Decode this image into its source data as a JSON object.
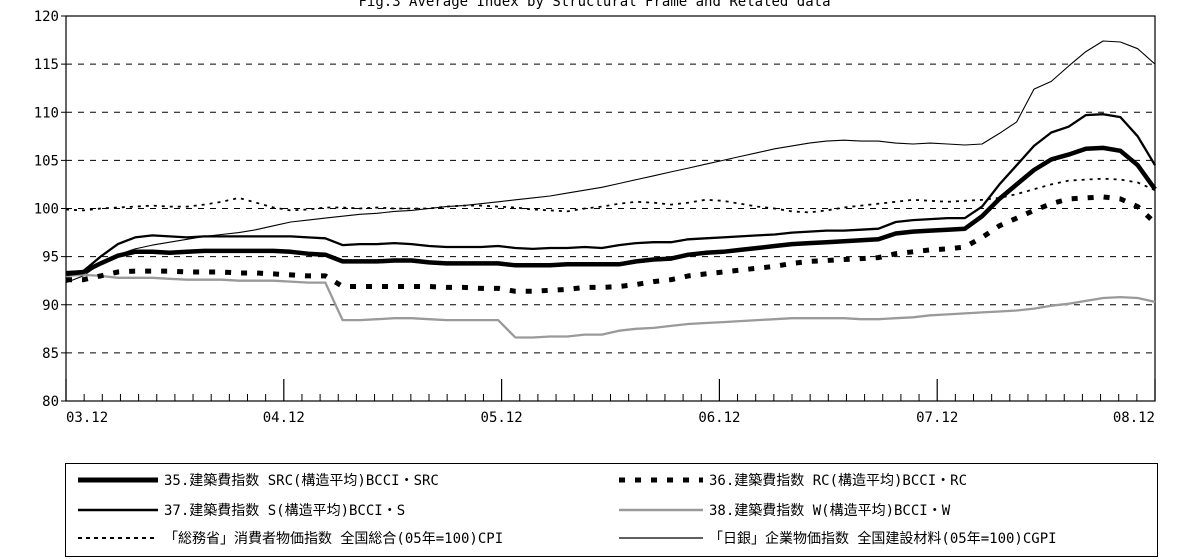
{
  "chart_data": {
    "type": "line",
    "title": "Fig.3 Average Index by Structural Frame and Related data",
    "ylim": [
      80,
      120
    ],
    "yticks": [
      "80",
      "85",
      "90",
      "95",
      "100",
      "105",
      "110",
      "115",
      "120"
    ],
    "xticks": [
      "03.12",
      "04.12",
      "05.12",
      "06.12",
      "07.12",
      "08.12"
    ],
    "grid": "horizontal-dashed",
    "legend": "bottom",
    "series": [
      {
        "name": "35.建築費指数 SRC(構造平均)BCCI・SRC",
        "style": "thick-solid",
        "color": "#000000",
        "values": [
          93.2,
          93.4,
          94.3,
          95.1,
          95.5,
          95.5,
          95.4,
          95.5,
          95.6,
          95.6,
          95.6,
          95.6,
          95.6,
          95.5,
          95.3,
          95.2,
          94.5,
          94.5,
          94.5,
          94.6,
          94.6,
          94.4,
          94.3,
          94.3,
          94.3,
          94.3,
          94.1,
          94.1,
          94.1,
          94.2,
          94.2,
          94.2,
          94.2,
          94.5,
          94.7,
          94.8,
          95.2,
          95.4,
          95.5,
          95.7,
          95.9,
          96.1,
          96.3,
          96.4,
          96.5,
          96.6,
          96.7,
          96.8,
          97.4,
          97.6,
          97.7,
          97.8,
          97.9,
          99.2,
          101.0,
          102.5,
          104.0,
          105.1,
          105.6,
          106.2,
          106.3,
          106.0,
          104.5,
          102.0
        ]
      },
      {
        "name": "36.建築費指数 RC(構造平均)BCCI・RC",
        "style": "thick-dotted",
        "color": "#000000",
        "values": [
          92.6,
          92.6,
          93.0,
          93.4,
          93.5,
          93.5,
          93.5,
          93.4,
          93.4,
          93.4,
          93.3,
          93.3,
          93.2,
          93.1,
          93.0,
          93.0,
          91.9,
          91.9,
          91.9,
          91.9,
          91.9,
          91.9,
          91.8,
          91.8,
          91.7,
          91.7,
          91.4,
          91.4,
          91.5,
          91.6,
          91.8,
          91.8,
          91.9,
          92.1,
          92.4,
          92.6,
          93.0,
          93.2,
          93.4,
          93.6,
          93.8,
          94.0,
          94.3,
          94.5,
          94.6,
          94.7,
          94.8,
          94.9,
          95.3,
          95.5,
          95.7,
          95.8,
          96.0,
          97.0,
          98.2,
          99.0,
          99.8,
          100.5,
          101.0,
          101.1,
          101.2,
          101.0,
          100.2,
          98.5
        ]
      },
      {
        "name": "37.建築費指数 S(構造平均)BCCI・S",
        "style": "medium-solid",
        "color": "#000000",
        "values": [
          93.4,
          93.5,
          95.0,
          96.3,
          97.0,
          97.2,
          97.1,
          97.0,
          97.1,
          97.1,
          97.1,
          97.1,
          97.1,
          97.1,
          97.0,
          96.9,
          96.2,
          96.3,
          96.3,
          96.4,
          96.3,
          96.1,
          96.0,
          96.0,
          96.0,
          96.1,
          95.9,
          95.8,
          95.9,
          95.9,
          96.0,
          95.9,
          96.2,
          96.4,
          96.5,
          96.5,
          96.8,
          96.9,
          97.0,
          97.1,
          97.2,
          97.3,
          97.5,
          97.6,
          97.7,
          97.7,
          97.8,
          97.9,
          98.6,
          98.8,
          98.9,
          99.0,
          99.0,
          100.2,
          102.5,
          104.5,
          106.5,
          107.9,
          108.5,
          109.7,
          109.8,
          109.5,
          107.5,
          104.5
        ]
      },
      {
        "name": "38.建築費指数 W(構造平均)BCCI・W",
        "style": "medium-solid",
        "color": "#9a9a9a",
        "values": [
          93.0,
          93.1,
          93.0,
          92.8,
          92.8,
          92.8,
          92.7,
          92.6,
          92.6,
          92.6,
          92.5,
          92.5,
          92.5,
          92.4,
          92.3,
          92.3,
          88.4,
          88.4,
          88.5,
          88.6,
          88.6,
          88.5,
          88.4,
          88.4,
          88.4,
          88.4,
          86.6,
          86.6,
          86.7,
          86.7,
          86.9,
          86.9,
          87.3,
          87.5,
          87.6,
          87.8,
          88.0,
          88.1,
          88.2,
          88.3,
          88.4,
          88.5,
          88.6,
          88.6,
          88.6,
          88.6,
          88.5,
          88.5,
          88.6,
          88.7,
          88.9,
          89.0,
          89.1,
          89.2,
          89.3,
          89.4,
          89.6,
          89.9,
          90.1,
          90.4,
          90.7,
          90.8,
          90.7,
          90.3
        ]
      },
      {
        "name": "「総務省」消費者物価指数 全国総合(05年=100)CPI",
        "style": "thin-dotted",
        "color": "#000000",
        "values": [
          99.9,
          99.8,
          100.0,
          100.1,
          100.2,
          100.3,
          100.2,
          100.2,
          100.4,
          100.7,
          101.1,
          100.6,
          100.1,
          99.8,
          99.9,
          100.1,
          100.1,
          100.0,
          100.1,
          100.0,
          100.0,
          100.0,
          100.2,
          100.3,
          100.3,
          100.2,
          100.1,
          99.9,
          99.8,
          99.7,
          100.0,
          100.2,
          100.5,
          100.7,
          100.6,
          100.4,
          100.6,
          100.9,
          100.8,
          100.5,
          100.2,
          100.0,
          99.7,
          99.6,
          99.8,
          100.1,
          100.3,
          100.5,
          100.7,
          100.9,
          100.8,
          100.7,
          100.8,
          100.9,
          101.1,
          101.5,
          102.0,
          102.5,
          102.9,
          103.0,
          103.1,
          103.0,
          102.7,
          101.9
        ]
      },
      {
        "name": "「日銀」企業物価指数 全国建設材料(05年=100)CGPI",
        "style": "thin-solid",
        "color": "#000000",
        "values": [
          92.3,
          93.0,
          94.3,
          95.2,
          95.8,
          96.2,
          96.5,
          96.8,
          97.1,
          97.3,
          97.5,
          97.8,
          98.2,
          98.6,
          98.8,
          99.0,
          99.2,
          99.4,
          99.5,
          99.7,
          99.8,
          100.0,
          100.2,
          100.3,
          100.5,
          100.7,
          100.9,
          101.1,
          101.3,
          101.6,
          101.9,
          102.2,
          102.6,
          103.0,
          103.4,
          103.8,
          104.2,
          104.6,
          105.0,
          105.4,
          105.8,
          106.2,
          106.5,
          106.8,
          107.0,
          107.1,
          107.0,
          107.0,
          106.8,
          106.7,
          106.8,
          106.7,
          106.6,
          106.7,
          107.8,
          109.0,
          112.4,
          113.2,
          114.8,
          116.3,
          117.4,
          117.3,
          116.6,
          115.0
        ]
      }
    ]
  }
}
